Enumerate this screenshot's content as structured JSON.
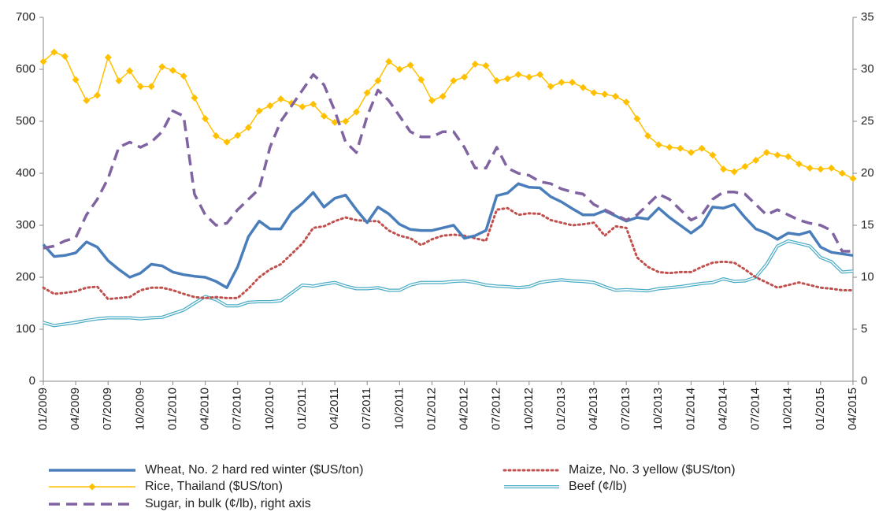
{
  "chart_data": {
    "type": "line",
    "categories": [
      "01/2009",
      null,
      null,
      "04/2009",
      null,
      null,
      "07/2009",
      null,
      null,
      "10/2009",
      null,
      null,
      "01/2010",
      null,
      null,
      "04/2010",
      null,
      null,
      "07/2010",
      null,
      null,
      "10/2010",
      null,
      null,
      "01/2011",
      null,
      null,
      "04/2011",
      null,
      null,
      "07/2011",
      null,
      null,
      "10/2011",
      null,
      null,
      "01/2012",
      null,
      null,
      "04/2012",
      null,
      null,
      "07/2012",
      null,
      null,
      "10/2012",
      null,
      null,
      "01/2013",
      null,
      null,
      "04/2013",
      null,
      null,
      "07/2013",
      null,
      null,
      "10/2013",
      null,
      null,
      "01/2014",
      null,
      null,
      "04/2014",
      null,
      null,
      "07/2014",
      null,
      null,
      "10/2014",
      null,
      null,
      "01/2015",
      null,
      null,
      "04/2015"
    ],
    "ylim": [
      0,
      700
    ],
    "yticks": [
      0,
      100,
      200,
      300,
      400,
      500,
      600,
      700
    ],
    "y2lim": [
      0,
      35
    ],
    "y2ticks": [
      0,
      5,
      10,
      15,
      20,
      25,
      30,
      35
    ],
    "series": [
      {
        "name": "Wheat, No. 2 hard red winter ($US/ton)",
        "color": "#4a7ebb",
        "values": [
          263,
          240,
          242,
          247,
          268,
          258,
          232,
          215,
          200,
          208,
          225,
          222,
          210,
          205,
          202,
          200,
          192,
          180,
          220,
          278,
          308,
          293,
          293,
          325,
          342,
          363,
          335,
          352,
          358,
          330,
          305,
          335,
          322,
          302,
          292,
          290,
          290,
          295,
          300,
          275,
          280,
          290,
          357,
          362,
          380,
          373,
          372,
          355,
          345,
          332,
          320,
          320,
          328,
          318,
          308,
          315,
          312,
          333,
          315,
          300,
          285,
          300,
          335,
          333,
          340,
          315,
          293,
          285,
          273,
          285,
          282,
          288,
          258,
          248,
          245,
          242
        ]
      },
      {
        "name": "Maize, No. 3 yellow ($US/ton)",
        "color": "#c0504d",
        "values": [
          180,
          168,
          170,
          173,
          180,
          182,
          158,
          160,
          162,
          175,
          180,
          180,
          175,
          168,
          162,
          160,
          162,
          160,
          160,
          178,
          200,
          215,
          225,
          245,
          265,
          295,
          298,
          308,
          315,
          310,
          308,
          308,
          290,
          280,
          275,
          262,
          273,
          280,
          282,
          280,
          275,
          270,
          330,
          333,
          320,
          323,
          322,
          310,
          305,
          300,
          302,
          305,
          280,
          298,
          295,
          238,
          220,
          210,
          208,
          210,
          210,
          220,
          228,
          230,
          228,
          215,
          200,
          190,
          180,
          185,
          190,
          185,
          180,
          178,
          175,
          175
        ]
      },
      {
        "name": "Rice, Thailand ($US/ton)",
        "color": "#ffc000",
        "values": [
          615,
          633,
          625,
          580,
          540,
          550,
          623,
          578,
          597,
          567,
          567,
          605,
          598,
          587,
          545,
          505,
          472,
          460,
          473,
          488,
          520,
          530,
          543,
          535,
          528,
          533,
          510,
          498,
          500,
          518,
          555,
          578,
          615,
          600,
          608,
          580,
          540,
          548,
          578,
          585,
          610,
          607,
          578,
          582,
          590,
          585,
          590,
          567,
          575,
          575,
          565,
          555,
          552,
          548,
          537,
          505,
          472,
          455,
          450,
          448,
          440,
          448,
          435,
          408,
          403,
          413,
          425,
          440,
          435,
          432,
          418,
          410,
          408,
          410,
          400,
          390
        ]
      },
      {
        "name": "Beef (¢/lb)",
        "color": "#4bacc6",
        "values": [
          113,
          107,
          110,
          113,
          117,
          120,
          122,
          122,
          122,
          120,
          122,
          123,
          130,
          137,
          150,
          163,
          157,
          145,
          145,
          152,
          153,
          153,
          155,
          170,
          185,
          183,
          187,
          190,
          183,
          178,
          178,
          180,
          175,
          175,
          185,
          190,
          190,
          190,
          192,
          193,
          190,
          185,
          183,
          182,
          180,
          182,
          190,
          193,
          195,
          193,
          192,
          190,
          182,
          175,
          176,
          175,
          174,
          178,
          180,
          182,
          185,
          188,
          190,
          197,
          192,
          193,
          200,
          225,
          260,
          270,
          265,
          260,
          238,
          230,
          210,
          212
        ]
      },
      {
        "name": "Sugar, in bulk (¢/lb), right axis",
        "color": "#8064a2",
        "axis": "y2",
        "values": [
          12.8,
          13,
          13.5,
          13.8,
          16,
          17.5,
          19.5,
          22.5,
          23,
          22.5,
          23,
          24,
          26,
          25.5,
          18,
          16,
          15,
          15.2,
          16.5,
          17.5,
          18.5,
          22.5,
          25,
          26.5,
          28,
          29.5,
          28.5,
          26,
          23,
          22,
          25.5,
          28,
          27,
          25.5,
          24,
          23.5,
          23.5,
          24,
          24,
          22.5,
          20.5,
          20.5,
          22.5,
          20.5,
          20,
          19.8,
          19.2,
          19,
          18.5,
          18.2,
          18,
          17,
          16.5,
          16,
          15.5,
          16,
          17,
          18,
          17.5,
          16.5,
          15.5,
          16,
          17.5,
          18.2,
          18.2,
          18,
          17,
          16,
          16.5,
          16,
          15.5,
          15.2,
          15,
          14.5,
          12.5,
          12.5
        ]
      }
    ]
  }
}
